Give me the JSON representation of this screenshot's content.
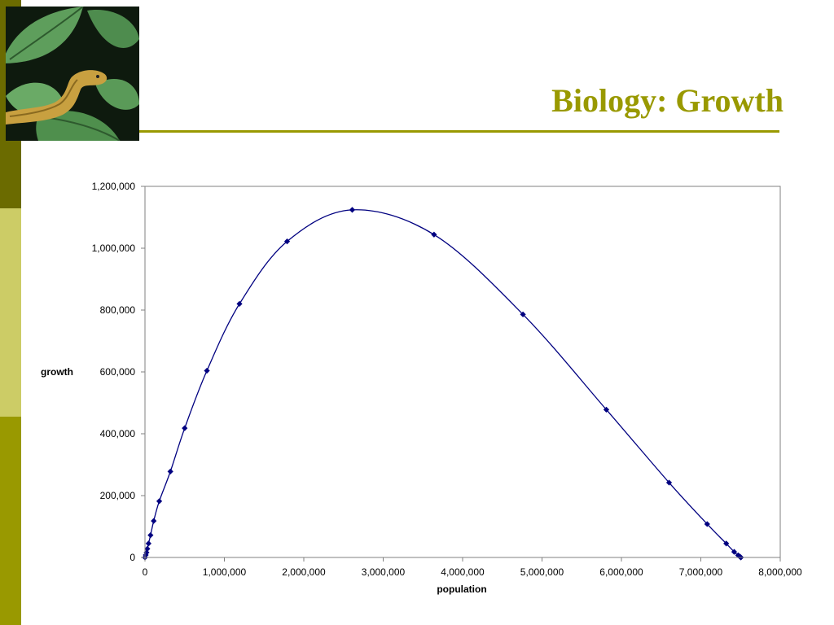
{
  "slide": {
    "title": "Biology: Growth",
    "colors": {
      "accent": "#999900",
      "band_dark": "#6b6b00",
      "band_light": "#cccc66",
      "series": "#000080"
    },
    "photo_icon": "snake-on-leaves-photo"
  },
  "chart_data": {
    "type": "scatter",
    "xlabel": "population",
    "ylabel": "growth",
    "xlim": [
      0,
      8000000
    ],
    "ylim": [
      0,
      1200000
    ],
    "xticks": [
      "0",
      "1,000,000",
      "2,000,000",
      "3,000,000",
      "4,000,000",
      "5,000,000",
      "6,000,000",
      "7,000,000",
      "8,000,000"
    ],
    "yticks": [
      "0",
      "200,000",
      "400,000",
      "600,000",
      "800,000",
      "1,000,000",
      "1,200,000"
    ],
    "grid": false,
    "legend": "none",
    "series": [
      {
        "marker": "diamond",
        "smoothed_line": true,
        "x": [
          0,
          10000,
          20000,
          30000,
          45000,
          70000,
          110000,
          180000,
          320000,
          500000,
          780000,
          1190000,
          1790000,
          2610000,
          3640000,
          4760000,
          5810000,
          6600000,
          7080000,
          7320000,
          7420000,
          7470000,
          7490000,
          7500000,
          7505000
        ],
        "y": [
          0,
          8000,
          16000,
          28000,
          45000,
          72000,
          118000,
          182000,
          278000,
          418000,
          604000,
          820000,
          1022000,
          1124000,
          1044000,
          786000,
          478000,
          242000,
          108000,
          45000,
          18000,
          7000,
          3000,
          1000,
          0
        ]
      }
    ]
  }
}
